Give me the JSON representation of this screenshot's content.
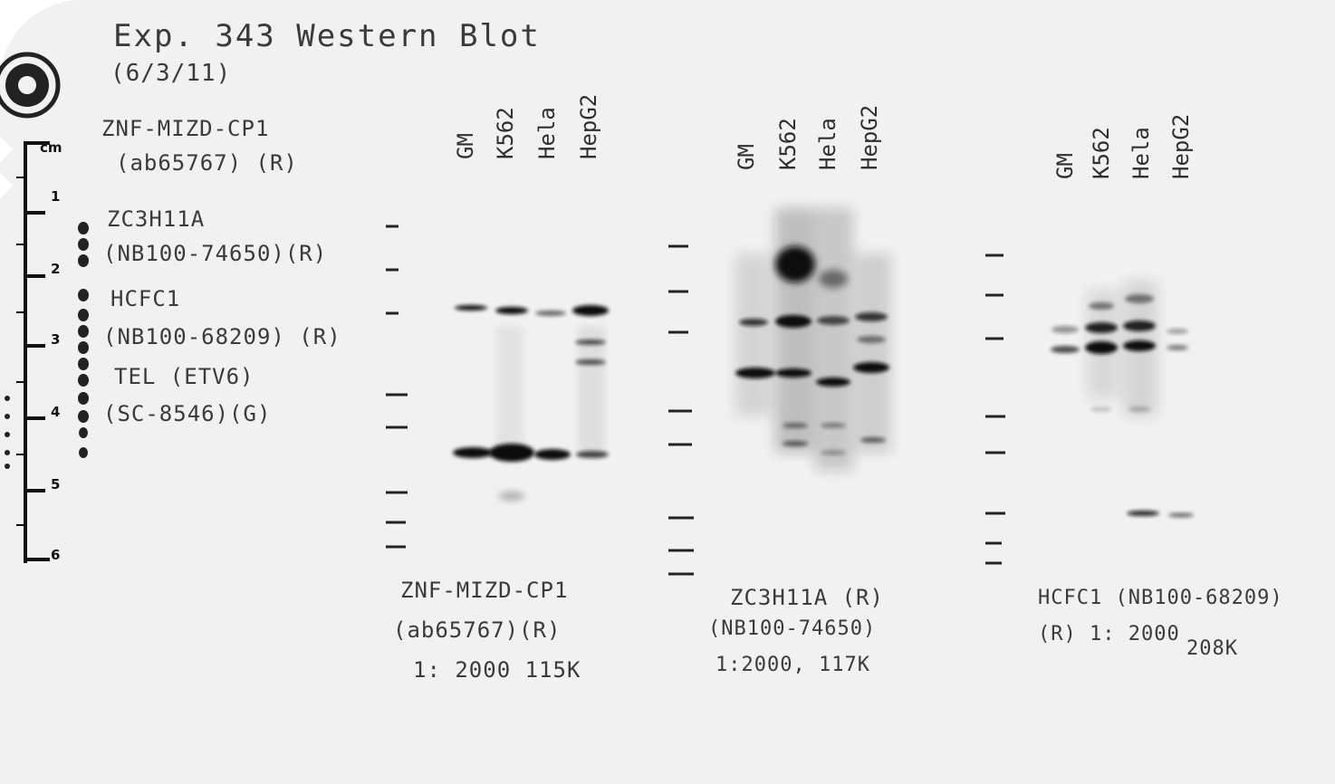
{
  "header": {
    "title": "Exp. 343  Western Blot",
    "date": "(6/3/11)"
  },
  "legend": [
    "ZNF-MIZD-CP1",
    "(ab65767) (R)",
    "ZC3H11A",
    "(NB100-74650)(R)",
    "HCFC1",
    "(NB100-68209) (R)",
    "TEL (ETV6)",
    "(SC-8546)(G)"
  ],
  "ruler": {
    "marks": [
      "cm",
      "1",
      "2",
      "3",
      "4",
      "5",
      "6"
    ]
  },
  "lanes": [
    "GM",
    "K562",
    "Hela",
    "HepG2"
  ],
  "panels": [
    {
      "caption": [
        "ZNF-MIZD-CP1",
        "(ab65767)(R)",
        "1: 2000  115K"
      ]
    },
    {
      "caption": [
        "ZC3H11A  (R)",
        "(NB100-74650)",
        "1:2000, 117K"
      ]
    },
    {
      "caption": [
        "HCFC1 (NB100-68209)",
        "(R)  1: 2000",
        "208K"
      ]
    }
  ],
  "colors": {
    "film": "#f1f1f1",
    "ink": "#3a3a3a",
    "band": "#111111"
  }
}
